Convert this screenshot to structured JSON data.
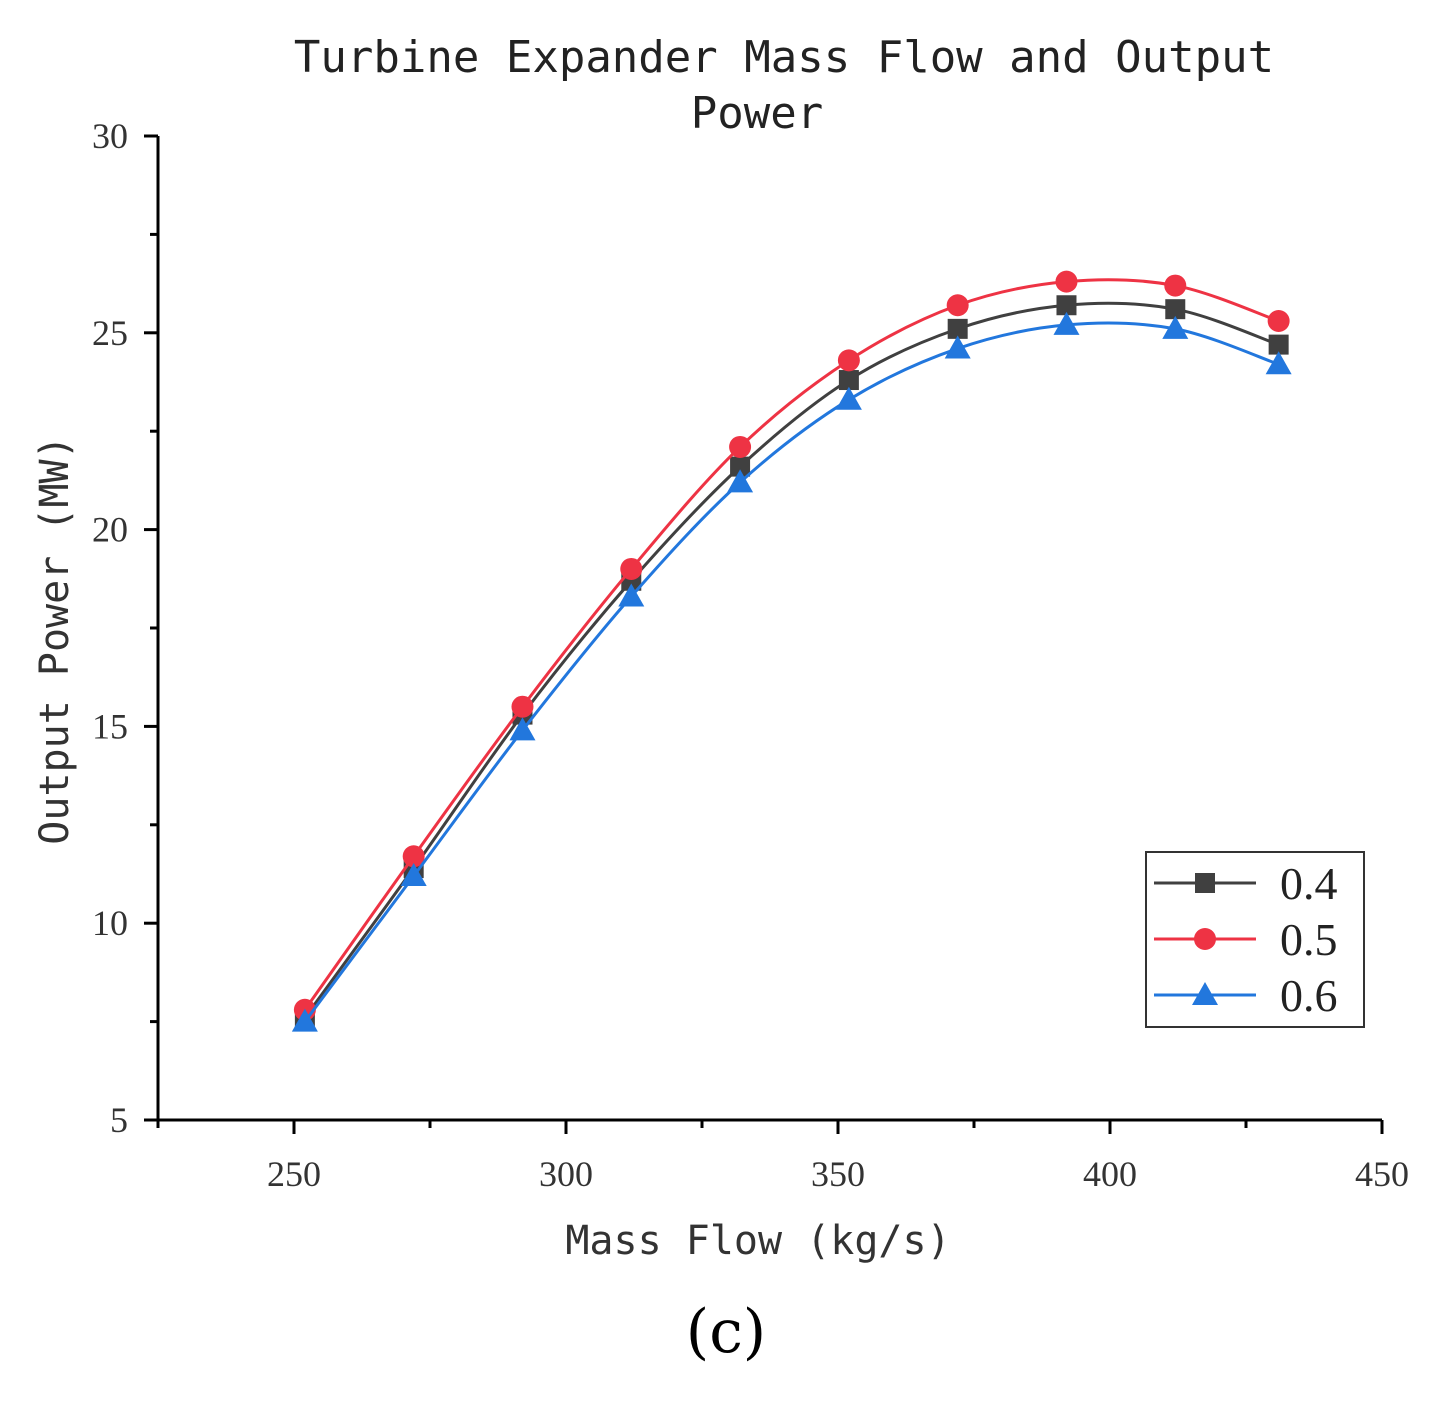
{
  "chart_data": {
    "type": "line",
    "title_lines": [
      "Turbine Expander Mass Flow and Output",
      "Power"
    ],
    "xlabel": "Mass Flow (kg/s)",
    "ylabel": "Output Power (MW)",
    "xlim": [
      225,
      450
    ],
    "ylim": [
      5,
      30
    ],
    "xticks": [
      250,
      300,
      350,
      400,
      450
    ],
    "yticks": [
      5,
      10,
      15,
      20,
      25,
      30
    ],
    "x": [
      252,
      272,
      292,
      312,
      332,
      352,
      372,
      392,
      412,
      431
    ],
    "series": [
      {
        "name": "0.4",
        "marker": "square",
        "color": "#404040",
        "values": [
          7.6,
          11.4,
          15.3,
          18.7,
          21.6,
          23.8,
          25.1,
          25.7,
          25.6,
          24.7
        ]
      },
      {
        "name": "0.5",
        "marker": "circle",
        "color": "#ee3344",
        "values": [
          7.8,
          11.7,
          15.5,
          19.0,
          22.1,
          24.3,
          25.7,
          26.3,
          26.2,
          25.3
        ]
      },
      {
        "name": "0.6",
        "marker": "triangle",
        "color": "#2277dd",
        "values": [
          7.5,
          11.2,
          14.9,
          18.3,
          21.2,
          23.3,
          24.6,
          25.2,
          25.1,
          24.2
        ]
      }
    ],
    "legend_position": "bottom-right"
  },
  "caption": "(c)"
}
